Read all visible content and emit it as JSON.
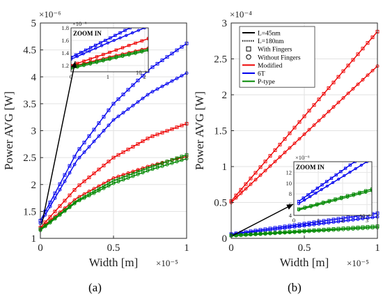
{
  "captions": {
    "a": "(a)",
    "b": "(b)"
  },
  "chart_data": [
    {
      "id": "a",
      "type": "line",
      "xlabel": "Width [m]",
      "ylabel": "Power AVG [W]",
      "x_exponent_label": "×10⁻⁵",
      "y_exponent_label": "×10⁻⁶",
      "xlim": [
        0,
        1
      ],
      "ylim": [
        1,
        5
      ],
      "xticks": [
        "0",
        "0.5",
        "1"
      ],
      "yticks": [
        "1",
        "1.5",
        "2",
        "2.5",
        "3",
        "3.5",
        "4",
        "4.5",
        "5"
      ],
      "grid": true,
      "series": [
        {
          "color": "#0000ee",
          "marker": "square",
          "x": [
            0,
            0.25,
            0.5,
            0.75,
            1
          ],
          "y": [
            1.33,
            2.6,
            3.5,
            4.15,
            4.62
          ]
        },
        {
          "color": "#0000ee",
          "marker": "circle",
          "x": [
            0,
            0.25,
            0.5,
            0.75,
            1
          ],
          "y": [
            1.28,
            2.45,
            3.2,
            3.7,
            4.07
          ]
        },
        {
          "color": "#ee0000",
          "marker": "square",
          "x": [
            0,
            0.25,
            0.5,
            0.75,
            1
          ],
          "y": [
            1.2,
            1.95,
            2.5,
            2.88,
            3.13
          ]
        },
        {
          "color": "#ee0000",
          "marker": "circle",
          "x": [
            0,
            0.25,
            0.5,
            0.75,
            1
          ],
          "y": [
            1.18,
            1.75,
            2.12,
            2.35,
            2.52
          ]
        },
        {
          "color": "#008800",
          "marker": "square",
          "x": [
            0,
            0.25,
            0.5,
            0.75,
            1
          ],
          "y": [
            1.17,
            1.7,
            2.07,
            2.32,
            2.55
          ]
        },
        {
          "color": "#008800",
          "marker": "circle",
          "x": [
            0,
            0.25,
            0.5,
            0.75,
            1
          ],
          "y": [
            1.15,
            1.68,
            2.02,
            2.27,
            2.48
          ]
        }
      ],
      "inset": {
        "title": "ZOOM IN",
        "xlim": [
          0,
          2.1
        ],
        "ylim": [
          1.1,
          1.8
        ],
        "xticks": [
          "0",
          "1",
          "2"
        ],
        "yticks": [
          "1.2",
          "1.4",
          "1.6",
          "1.8"
        ],
        "x_exponent_label": "10⁻⁶",
        "y_exponent_label": "×10⁻⁶",
        "series": [
          {
            "color": "#0000ee",
            "marker": "square",
            "x": [
              0,
              1,
              1.6
            ],
            "y": [
              1.33,
              1.62,
              1.8
            ]
          },
          {
            "color": "#0000ee",
            "marker": "circle",
            "x": [
              0,
              1,
              2
            ],
            "y": [
              1.3,
              1.56,
              1.8
            ]
          },
          {
            "color": "#ee0000",
            "marker": "square",
            "x": [
              0,
              1,
              2.1
            ],
            "y": [
              1.2,
              1.4,
              1.63
            ]
          },
          {
            "color": "#ee0000",
            "marker": "circle",
            "x": [
              0,
              1,
              2.1
            ],
            "y": [
              1.18,
              1.33,
              1.48
            ]
          },
          {
            "color": "#008800",
            "marker": "square",
            "x": [
              0,
              1,
              2.1
            ],
            "y": [
              1.17,
              1.31,
              1.46
            ]
          },
          {
            "color": "#008800",
            "marker": "circle",
            "x": [
              0,
              1,
              2.1
            ],
            "y": [
              1.15,
              1.29,
              1.44
            ]
          }
        ]
      }
    },
    {
      "id": "b",
      "type": "line",
      "xlabel": "Width [m]",
      "ylabel": "Power AVG [W]",
      "x_exponent_label": "×10⁻⁵",
      "y_exponent_label": "×10⁻⁴",
      "xlim": [
        0,
        1
      ],
      "ylim": [
        0,
        3
      ],
      "xticks": [
        "0",
        "0.5",
        "1"
      ],
      "yticks": [
        "0",
        "0.5",
        "1",
        "1.5",
        "2",
        "2.5",
        "3"
      ],
      "grid": true,
      "legend": {
        "placement": "top-left",
        "entries": [
          {
            "label": "L=45nm",
            "style": "solid-line",
            "color": "#000000"
          },
          {
            "label": "L=180nm",
            "style": "dotted-line",
            "color": "#000000"
          },
          {
            "label": "With Fingers",
            "style": "square-marker",
            "color": "#000000"
          },
          {
            "label": "Without Fingers",
            "style": "circle-marker",
            "color": "#000000"
          },
          {
            "label": "Modified",
            "style": "solid-line",
            "color": "#ee0000"
          },
          {
            "label": "6T",
            "style": "solid-line",
            "color": "#0000ee"
          },
          {
            "label": "P-type",
            "style": "solid-line",
            "color": "#008800"
          }
        ]
      },
      "series": [
        {
          "color": "#ee0000",
          "marker": "square",
          "x": [
            0,
            1
          ],
          "y": [
            0.52,
            2.88
          ]
        },
        {
          "color": "#ee0000",
          "marker": "circle",
          "x": [
            0,
            1
          ],
          "y": [
            0.5,
            2.4
          ]
        },
        {
          "color": "#0000ee",
          "marker": "square",
          "x": [
            0,
            1
          ],
          "y": [
            0.06,
            0.35
          ]
        },
        {
          "color": "#0000ee",
          "marker": "circle",
          "x": [
            0,
            1
          ],
          "y": [
            0.05,
            0.3
          ]
        },
        {
          "color": "#008800",
          "marker": "square",
          "x": [
            0,
            1
          ],
          "y": [
            0.04,
            0.17
          ]
        },
        {
          "color": "#008800",
          "marker": "circle",
          "x": [
            0,
            1
          ],
          "y": [
            0.035,
            0.15
          ]
        }
      ],
      "inset": {
        "title": "ZOOM IN",
        "xlim": [
          0,
          3.2
        ],
        "ylim": [
          4,
          14
        ],
        "xticks": [
          "0",
          "1",
          "2",
          "3"
        ],
        "yticks": [
          "4",
          "6",
          "8",
          "10",
          "12"
        ],
        "x_exponent_label": "10⁻⁶",
        "y_exponent_label": "×10⁻⁶",
        "series": [
          {
            "color": "#0000ee",
            "marker": "square",
            "x": [
              0.2,
              2.5
            ],
            "y": [
              6.6,
              14
            ]
          },
          {
            "color": "#0000ee",
            "marker": "circle",
            "x": [
              0.2,
              3.0
            ],
            "y": [
              6.2,
              14
            ]
          },
          {
            "color": "#008800",
            "marker": "square",
            "x": [
              0.2,
              3.2
            ],
            "y": [
              5.2,
              8.9
            ]
          },
          {
            "color": "#008800",
            "marker": "circle",
            "x": [
              0.2,
              3.2
            ],
            "y": [
              5.0,
              8.6
            ]
          }
        ]
      }
    }
  ]
}
